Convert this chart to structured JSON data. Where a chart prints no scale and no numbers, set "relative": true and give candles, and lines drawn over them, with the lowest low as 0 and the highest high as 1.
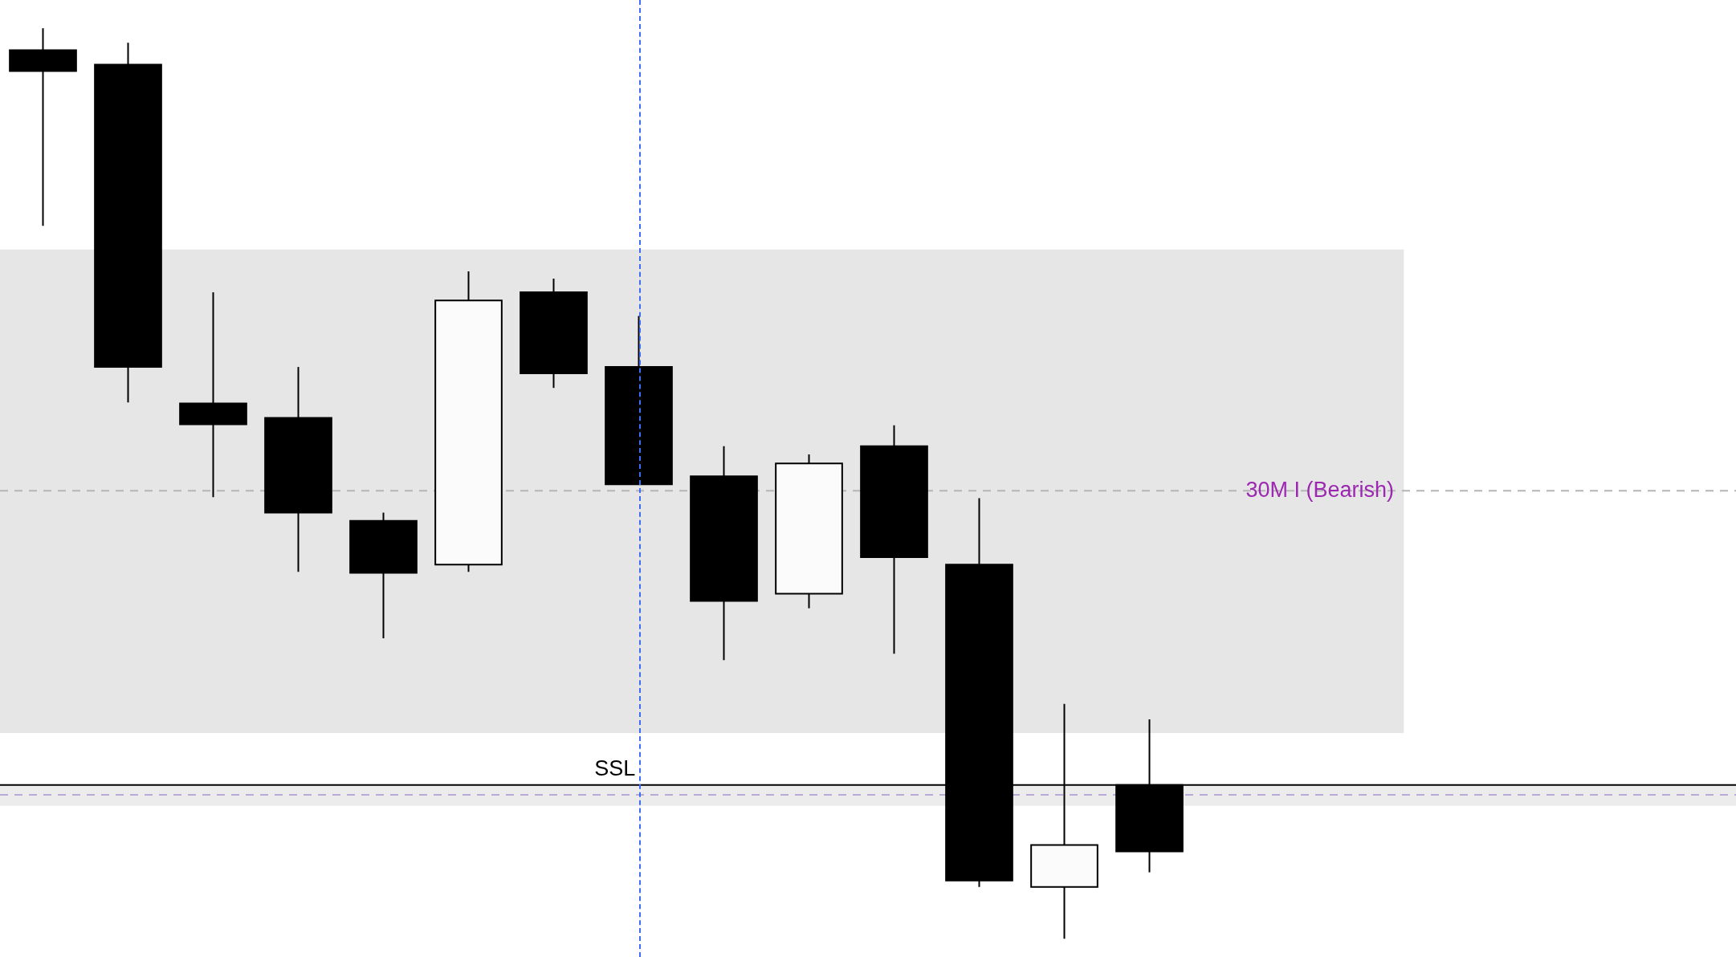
{
  "chart_data": {
    "type": "candlestick",
    "relative": true,
    "tick_labels": false,
    "categories": [
      null,
      null,
      null,
      null,
      null,
      null,
      null,
      null,
      null,
      null,
      null,
      null,
      null,
      null
    ],
    "ohlc": [
      [
        0.976,
        1.0,
        0.783,
        0.953
      ],
      [
        0.96,
        0.984,
        0.589,
        0.628
      ],
      [
        0.588,
        0.71,
        0.485,
        0.565
      ],
      [
        0.572,
        0.628,
        0.403,
        0.468
      ],
      [
        0.459,
        0.468,
        0.33,
        0.402
      ],
      [
        0.411,
        0.733,
        0.403,
        0.701
      ],
      [
        0.71,
        0.725,
        0.605,
        0.621
      ],
      [
        0.628,
        0.684,
        0.499,
        0.499
      ],
      [
        0.508,
        0.541,
        0.306,
        0.371
      ],
      [
        0.379,
        0.532,
        0.363,
        0.522
      ],
      [
        0.541,
        0.564,
        0.313,
        0.419
      ],
      [
        0.411,
        0.484,
        0.057,
        0.064
      ],
      [
        0.057,
        0.258,
        0.0,
        0.103
      ],
      [
        0.169,
        0.241,
        0.073,
        0.096
      ]
    ],
    "bands": [
      {
        "axis": "y",
        "from": 0.226,
        "to": 0.757,
        "color": "#e6e6e6"
      },
      {
        "axis": "y",
        "from": 0.146,
        "to": 0.168,
        "color": "#ececec"
      }
    ],
    "ref_lines": [
      {
        "axis": "y",
        "value": 0.492,
        "label": "30M I (Bearish)",
        "color": "#b5b5b5",
        "line_style": "dashed"
      },
      {
        "axis": "y",
        "value": 0.169,
        "label": "SSL",
        "color": "#000000",
        "line_style": "solid"
      },
      {
        "axis": "y",
        "value": 0.158,
        "color": "#b9a9d6",
        "line_style": "dashed"
      }
    ]
  }
}
